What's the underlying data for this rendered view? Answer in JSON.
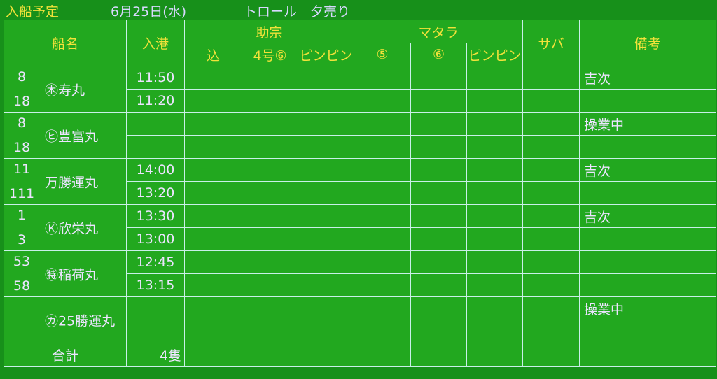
{
  "header": {
    "title": "入船予定",
    "date": "6月25日(水)",
    "kind": "トロール　夕売り"
  },
  "columns": {
    "ship": "船名",
    "arrival": "入港",
    "group1": "助宗",
    "group1_sub": [
      "込",
      "4号⑥",
      "ピンピン"
    ],
    "group2": "マタラ",
    "group2_sub": [
      "⑤",
      "⑥",
      "ピンピン"
    ],
    "saba": "サバ",
    "notes": "備考"
  },
  "ships": [
    {
      "nums": [
        "8",
        "18"
      ],
      "name": "㊍寿丸",
      "times": [
        "11:50",
        "11:20"
      ],
      "notes": [
        "吉次",
        ""
      ]
    },
    {
      "nums": [
        "8",
        "18"
      ],
      "name": "㋪豊富丸",
      "times": [
        "",
        ""
      ],
      "notes": [
        "操業中",
        ""
      ]
    },
    {
      "nums": [
        "11",
        "111"
      ],
      "name": "万勝運丸",
      "times": [
        "14:00",
        "13:20"
      ],
      "notes": [
        "吉次",
        ""
      ]
    },
    {
      "nums": [
        "1",
        "3"
      ],
      "name": "Ⓚ欣栄丸",
      "times": [
        "13:30",
        "13:00"
      ],
      "notes": [
        "吉次",
        ""
      ]
    },
    {
      "nums": [
        "53",
        "58"
      ],
      "name": "㊕稲荷丸",
      "times": [
        "12:45",
        "13:15"
      ],
      "notes": [
        "",
        ""
      ]
    },
    {
      "nums": [
        "",
        ""
      ],
      "name": "㋕25勝運丸",
      "times": [
        "",
        ""
      ],
      "notes": [
        "操業中",
        ""
      ]
    }
  ],
  "total": {
    "label": "合計",
    "count": "4隻"
  },
  "colors": {
    "background": "#22a81f",
    "grid": "#c8f0e8",
    "header_text": "#f2e23a",
    "data_text": "#ece4ff"
  }
}
